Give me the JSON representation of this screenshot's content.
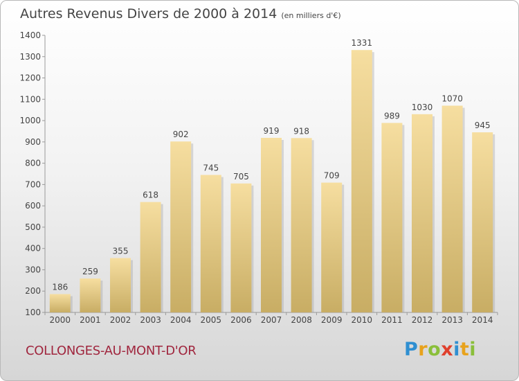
{
  "title": "Autres Revenus Divers de 2000 à 2014",
  "subtitle": "(en milliers d'€)",
  "location": "COLLONGES-AU-MONT-D'OR",
  "logo": {
    "text": "Proxiti",
    "letter_colors": [
      "#2f8fd1",
      "#e8a21c",
      "#8abf3a",
      "#e0402d",
      "#2f8fd1",
      "#e8a21c",
      "#8abf3a"
    ]
  },
  "colors": {
    "bar_top": "#f6dea0",
    "bar_bottom": "#c8ad64",
    "bar_shadow": "#9a9a9a",
    "text": "#444444",
    "axis": "#999999",
    "city": "#a0263e"
  },
  "chart_data": {
    "type": "bar",
    "title": "Autres Revenus Divers de 2000 à 2014",
    "subtitle": "(en milliers d'€)",
    "xlabel": "",
    "ylabel": "",
    "categories": [
      "2000",
      "2001",
      "2002",
      "2003",
      "2004",
      "2005",
      "2006",
      "2007",
      "2008",
      "2009",
      "2010",
      "2011",
      "2012",
      "2013",
      "2014"
    ],
    "values": [
      186,
      259,
      355,
      618,
      902,
      745,
      705,
      919,
      918,
      709,
      1331,
      989,
      1030,
      1070,
      945
    ],
    "ylim": [
      100,
      1400
    ],
    "yticks": [
      100,
      200,
      300,
      400,
      500,
      600,
      700,
      800,
      900,
      1000,
      1100,
      1200,
      1300,
      1400
    ],
    "grid": false
  }
}
